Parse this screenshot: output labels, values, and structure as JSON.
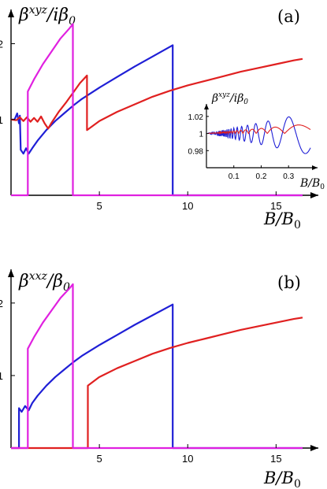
{
  "colors": {
    "blue": "#1f1fd6",
    "red": "#e02020",
    "magenta": "#e020e0",
    "axis": "#000000"
  },
  "chart_data": [
    {
      "type": "line",
      "panel_label": "(a)",
      "ylabel_main": "β",
      "ylabel_sup": "xyz",
      "ylabel_rest": "/iβ",
      "ylabel_sub": "0",
      "xlabel_main": "B/B",
      "xlabel_sub": "0",
      "xlim": [
        0,
        16.5
      ],
      "ylim": [
        0,
        2.4
      ],
      "xticks": [
        5,
        10,
        15
      ],
      "yticks": [
        1,
        2
      ],
      "series": [
        {
          "color_key": "blue",
          "points": [
            [
              0,
              1
            ],
            [
              0.2,
              1
            ],
            [
              0.35,
              1.08
            ],
            [
              0.45,
              0.95
            ],
            [
              0.5,
              1.05
            ],
            [
              0.55,
              0.6
            ],
            [
              0.7,
              0.55
            ],
            [
              0.85,
              0.62
            ],
            [
              1.0,
              0.55
            ],
            [
              1.2,
              0.62
            ],
            [
              1.5,
              0.72
            ],
            [
              2,
              0.86
            ],
            [
              2.5,
              0.98
            ],
            [
              3,
              1.08
            ],
            [
              3.5,
              1.18
            ],
            [
              4,
              1.27
            ],
            [
              5,
              1.42
            ],
            [
              6,
              1.56
            ],
            [
              7,
              1.7
            ],
            [
              8,
              1.83
            ],
            [
              9.15,
              1.98
            ],
            [
              9.15,
              0
            ],
            [
              16.5,
              0
            ]
          ]
        },
        {
          "color_key": "red",
          "points": [
            [
              0,
              1
            ],
            [
              0.3,
              0.99
            ],
            [
              0.5,
              1.03
            ],
            [
              0.7,
              0.98
            ],
            [
              0.9,
              1.03
            ],
            [
              1.1,
              0.97
            ],
            [
              1.3,
              1.02
            ],
            [
              1.5,
              0.97
            ],
            [
              1.7,
              1.04
            ],
            [
              1.9,
              0.95
            ],
            [
              2.1,
              0.88
            ],
            [
              2.3,
              0.96
            ],
            [
              2.7,
              1.1
            ],
            [
              3.1,
              1.22
            ],
            [
              3.5,
              1.35
            ],
            [
              3.9,
              1.48
            ],
            [
              4.3,
              1.58
            ],
            [
              4.3,
              0.86
            ],
            [
              5,
              0.98
            ],
            [
              6,
              1.1
            ],
            [
              7,
              1.2
            ],
            [
              8,
              1.3
            ],
            [
              9,
              1.38
            ],
            [
              10,
              1.45
            ],
            [
              11,
              1.51
            ],
            [
              12,
              1.57
            ],
            [
              13,
              1.63
            ],
            [
              14,
              1.68
            ],
            [
              15,
              1.73
            ],
            [
              16,
              1.78
            ],
            [
              16.5,
              1.8
            ]
          ]
        },
        {
          "color_key": "magenta",
          "points": [
            [
              0,
              0
            ],
            [
              0.95,
              0
            ],
            [
              0.95,
              1.37
            ],
            [
              1.3,
              1.53
            ],
            [
              1.8,
              1.73
            ],
            [
              2.3,
              1.9
            ],
            [
              2.8,
              2.07
            ],
            [
              3.3,
              2.2
            ],
            [
              3.5,
              2.26
            ],
            [
              3.5,
              0
            ],
            [
              16.5,
              0
            ]
          ]
        }
      ],
      "inset": {
        "ylabel_main": "β",
        "ylabel_sup": "xyz",
        "ylabel_rest": "/iβ",
        "ylabel_sub": "0",
        "xlabel_main": "B/B",
        "xlabel_sub": "0",
        "xlim": [
          0,
          0.38
        ],
        "ylim": [
          0.96,
          1.03
        ],
        "xticks": [
          "0.1",
          "0.2",
          "0.3"
        ],
        "xtick_values": [
          0.1,
          0.2,
          0.3
        ],
        "yticks": [
          "0.98",
          "1",
          "1.02"
        ],
        "ytick_values": [
          0.98,
          1.0,
          1.02
        ]
      }
    },
    {
      "type": "line",
      "panel_label": "(b)",
      "ylabel_main": "β",
      "ylabel_sup": "xxz",
      "ylabel_rest": "/β",
      "ylabel_sub": "0",
      "xlabel_main": "B/B",
      "xlabel_sub": "0",
      "xlim": [
        0,
        16.5
      ],
      "ylim": [
        0,
        2.4
      ],
      "xticks": [
        5,
        10,
        15
      ],
      "yticks": [
        1,
        2
      ],
      "series": [
        {
          "color_key": "blue",
          "points": [
            [
              0,
              0
            ],
            [
              0.45,
              0
            ],
            [
              0.45,
              0.55
            ],
            [
              0.6,
              0.5
            ],
            [
              0.8,
              0.58
            ],
            [
              1.0,
              0.52
            ],
            [
              1.2,
              0.62
            ],
            [
              1.5,
              0.72
            ],
            [
              2,
              0.86
            ],
            [
              2.5,
              0.98
            ],
            [
              3,
              1.08
            ],
            [
              3.5,
              1.18
            ],
            [
              4,
              1.27
            ],
            [
              5,
              1.42
            ],
            [
              6,
              1.56
            ],
            [
              7,
              1.7
            ],
            [
              8,
              1.83
            ],
            [
              9.15,
              1.98
            ],
            [
              9.15,
              0
            ],
            [
              16.5,
              0
            ]
          ]
        },
        {
          "color_key": "red",
          "points": [
            [
              0,
              0
            ],
            [
              4.35,
              0
            ],
            [
              4.35,
              0.86
            ],
            [
              5,
              0.98
            ],
            [
              6,
              1.1
            ],
            [
              7,
              1.2
            ],
            [
              8,
              1.3
            ],
            [
              9,
              1.38
            ],
            [
              10,
              1.45
            ],
            [
              11,
              1.51
            ],
            [
              12,
              1.57
            ],
            [
              13,
              1.63
            ],
            [
              14,
              1.68
            ],
            [
              15,
              1.73
            ],
            [
              16,
              1.78
            ],
            [
              16.5,
              1.8
            ]
          ]
        },
        {
          "color_key": "magenta",
          "points": [
            [
              0,
              0
            ],
            [
              0.95,
              0
            ],
            [
              0.95,
              1.37
            ],
            [
              1.3,
              1.53
            ],
            [
              1.8,
              1.73
            ],
            [
              2.3,
              1.9
            ],
            [
              2.8,
              2.07
            ],
            [
              3.3,
              2.2
            ],
            [
              3.5,
              2.26
            ],
            [
              3.5,
              0
            ],
            [
              16.5,
              0
            ]
          ]
        }
      ]
    }
  ]
}
